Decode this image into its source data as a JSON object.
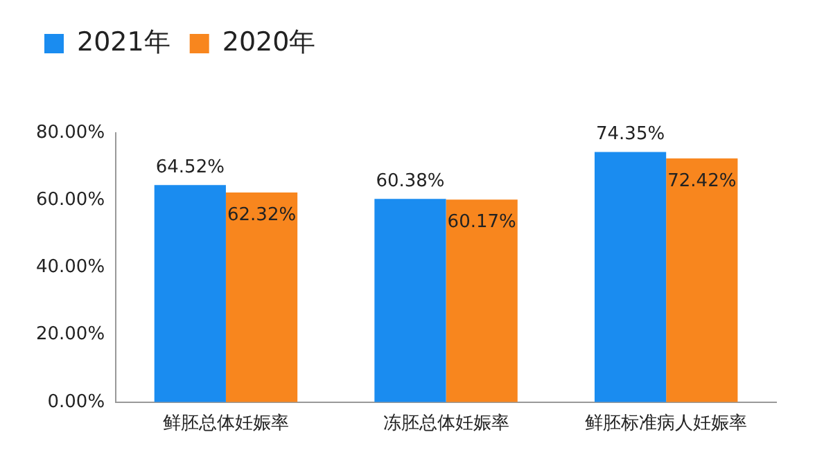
{
  "chart_data": {
    "type": "bar",
    "categories": [
      "鲜胚总体妊娠率",
      "冻胚总体妊娠率",
      "鲜胚标准病人妊娠率"
    ],
    "series": [
      {
        "name": "2021年",
        "color": "#1a8cf0",
        "values": [
          64.52,
          60.38,
          74.35
        ],
        "value_labels": [
          "64.52%",
          "60.38%",
          "74.35%"
        ]
      },
      {
        "name": "2020年",
        "color": "#f8861e",
        "values": [
          62.32,
          60.17,
          72.42
        ],
        "value_labels": [
          "62.32%",
          "60.17%",
          "72.42%"
        ]
      }
    ],
    "ylim": [
      0,
      80
    ],
    "yticks": [
      {
        "value": 0,
        "label": "0.00%"
      },
      {
        "value": 20,
        "label": "20.00%"
      },
      {
        "value": 40,
        "label": "40.00%"
      },
      {
        "value": 60,
        "label": "60.00%"
      },
      {
        "value": 80,
        "label": "80.00%"
      }
    ],
    "grid": false,
    "legend": "top left"
  }
}
